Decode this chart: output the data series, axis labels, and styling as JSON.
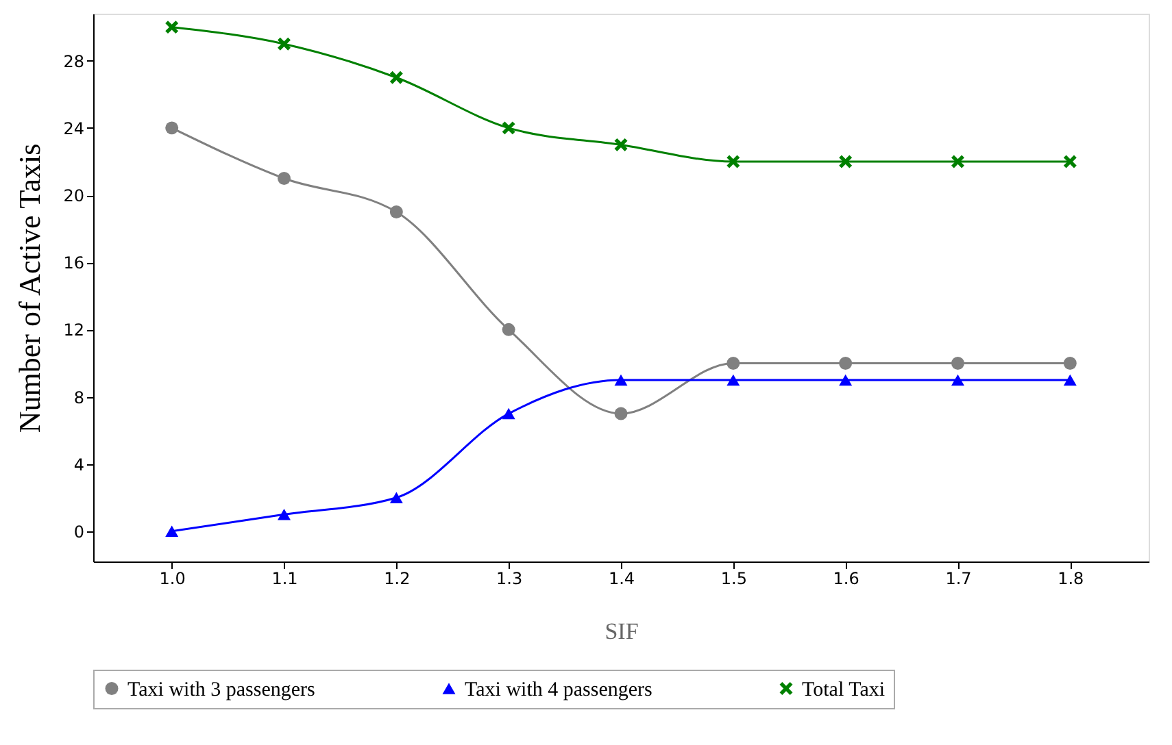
{
  "chart_data": {
    "type": "line",
    "xlabel": "SIF",
    "ylabel": "Number of Active Taxis",
    "x": [
      1.0,
      1.1,
      1.2,
      1.3,
      1.4,
      1.5,
      1.6,
      1.7,
      1.8
    ],
    "series": [
      {
        "name": "Taxi with 3 passengers",
        "color": "#808080",
        "marker": "circle",
        "values": [
          24,
          21,
          19,
          12,
          7,
          10,
          10,
          10,
          10
        ]
      },
      {
        "name": "Taxi with 4 passengers",
        "color": "#0000ff",
        "marker": "triangle",
        "values": [
          0,
          1,
          2,
          7,
          9,
          9,
          9,
          9,
          9
        ]
      },
      {
        "name": "Total Taxi",
        "color": "#008000",
        "marker": "cross",
        "values": [
          30,
          29,
          27,
          24,
          23,
          22,
          22,
          22,
          22
        ]
      }
    ],
    "xlim": [
      0.93,
      1.87
    ],
    "ylim": [
      -1.8,
      30.8
    ],
    "xticks": [
      {
        "value": 1.0,
        "label": "1.0"
      },
      1.1,
      1.2,
      1.3,
      1.4,
      1.5,
      1.6,
      1.7,
      1.8
    ],
    "yticks": [
      0,
      4,
      8,
      12,
      16,
      20,
      24,
      28
    ],
    "legend": "bottom",
    "grid": false,
    "line_style": "solid"
  }
}
